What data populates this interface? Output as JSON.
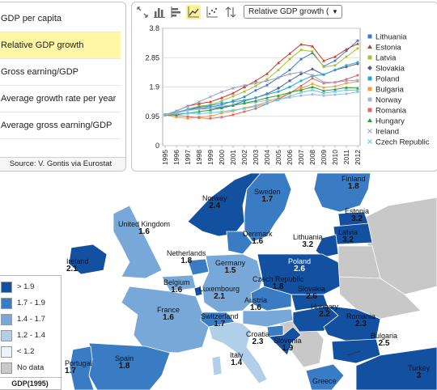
{
  "indicators": {
    "items": [
      {
        "label": "GDP per capita"
      },
      {
        "label": "Relative GDP growth"
      },
      {
        "label": "Gross earning/GDP"
      },
      {
        "label": "Average growth rate per year"
      },
      {
        "label": "Average gross earning/GDP"
      }
    ],
    "selected_index": 1,
    "source": "Source: V. Gontis via Eurostat"
  },
  "toolbar": {
    "icons": [
      "scatter-zoom-icon",
      "bar-chart-icon",
      "horizontal-bar-icon",
      "line-chart-icon",
      "scatter-plot-icon",
      "sort-icon"
    ],
    "active_icon": "line-chart-icon",
    "measure_select": "Relative GDP growth (",
    "select_arrow": "▼"
  },
  "chart_data": {
    "type": "line",
    "x": [
      "1995",
      "1996",
      "1997",
      "1998",
      "1999",
      "2000",
      "2001",
      "2002",
      "2003",
      "2004",
      "2005",
      "2006",
      "2007",
      "2008",
      "2009",
      "2010",
      "2011",
      "2012"
    ],
    "ylim": [
      0,
      3.8
    ],
    "yticks": [
      "0",
      "0.95",
      "1.9",
      "2.85",
      "3.8"
    ],
    "grid": true,
    "legend_position": "right",
    "series": [
      {
        "name": "Lithuania",
        "color": "#3a78c8",
        "marker": "square",
        "values": [
          1.0,
          1.05,
          1.18,
          1.27,
          1.25,
          1.32,
          1.45,
          1.58,
          1.79,
          1.96,
          2.2,
          2.45,
          2.8,
          3.0,
          2.57,
          2.75,
          3.07,
          3.4
        ]
      },
      {
        "name": "Estonia",
        "color": "#c83a2a",
        "marker": "triangle",
        "values": [
          1.0,
          1.12,
          1.28,
          1.36,
          1.42,
          1.55,
          1.7,
          1.9,
          2.1,
          2.33,
          2.68,
          2.98,
          3.28,
          3.22,
          2.75,
          2.88,
          3.12,
          3.3
        ]
      },
      {
        "name": "Latvia",
        "color": "#a8c030",
        "marker": "square",
        "values": [
          1.0,
          1.05,
          1.18,
          1.28,
          1.32,
          1.45,
          1.6,
          1.75,
          1.93,
          2.15,
          2.45,
          2.8,
          3.1,
          3.05,
          2.55,
          2.6,
          2.88,
          3.15
        ]
      },
      {
        "name": "Slovakia",
        "color": "#505aa8",
        "marker": "diamond",
        "values": [
          1.0,
          1.08,
          1.16,
          1.22,
          1.2,
          1.24,
          1.32,
          1.45,
          1.55,
          1.68,
          1.86,
          2.1,
          2.32,
          2.48,
          2.3,
          2.45,
          2.55,
          2.65
        ]
      },
      {
        "name": "Poland",
        "color": "#28a8c8",
        "marker": "square",
        "values": [
          1.0,
          1.08,
          1.17,
          1.25,
          1.3,
          1.38,
          1.42,
          1.47,
          1.55,
          1.66,
          1.75,
          1.9,
          2.1,
          2.26,
          2.3,
          2.45,
          2.6,
          2.7
        ]
      },
      {
        "name": "Bulgaria",
        "color": "#f0a040",
        "marker": "square",
        "values": [
          1.0,
          0.92,
          0.88,
          0.93,
          0.96,
          1.05,
          1.12,
          1.22,
          1.3,
          1.42,
          1.55,
          1.7,
          1.85,
          2.0,
          1.88,
          1.92,
          2.02,
          2.08
        ]
      },
      {
        "name": "Norway",
        "color": "#a0b8e0",
        "marker": "square",
        "values": [
          1.0,
          1.06,
          1.14,
          1.17,
          1.2,
          1.28,
          1.32,
          1.37,
          1.4,
          1.47,
          1.5,
          1.56,
          1.62,
          1.66,
          1.62,
          1.65,
          1.68,
          1.74
        ]
      },
      {
        "name": "Romania",
        "color": "#e06868",
        "marker": "square",
        "values": [
          1.0,
          0.98,
          0.94,
          0.9,
          0.88,
          0.92,
          1.0,
          1.1,
          1.2,
          1.36,
          1.5,
          1.7,
          1.93,
          2.18,
          2.02,
          2.05,
          2.15,
          2.28
        ]
      },
      {
        "name": "Hungary",
        "color": "#28a030",
        "marker": "triangle",
        "values": [
          1.0,
          1.0,
          1.05,
          1.1,
          1.15,
          1.22,
          1.3,
          1.38,
          1.45,
          1.55,
          1.62,
          1.72,
          1.8,
          1.9,
          1.78,
          1.82,
          1.88,
          1.86
        ]
      },
      {
        "name": "Ireland",
        "color": "#a0a0c0",
        "marker": "cross",
        "values": [
          1.0,
          1.12,
          1.28,
          1.42,
          1.58,
          1.74,
          1.86,
          1.95,
          2.02,
          2.1,
          2.2,
          2.32,
          2.38,
          2.28,
          2.05,
          2.05,
          2.1,
          2.12
        ]
      },
      {
        "name": "Czech Republic",
        "color": "#60c8e8",
        "marker": "cross",
        "values": [
          1.0,
          1.04,
          1.05,
          1.04,
          1.06,
          1.1,
          1.15,
          1.2,
          1.27,
          1.37,
          1.48,
          1.6,
          1.72,
          1.8,
          1.7,
          1.75,
          1.8,
          1.79
        ]
      }
    ]
  },
  "map": {
    "colors": {
      "c1": "#1450a0",
      "c2": "#3a7cc4",
      "c3": "#78a8d8",
      "c4": "#b2cfea",
      "c5": "#e6eef8",
      "nodata": "#c8c8c8"
    },
    "countries": [
      {
        "name": "Norway",
        "value": "2.4"
      },
      {
        "name": "Sweden",
        "value": "1.7"
      },
      {
        "name": "Finland",
        "value": "1.8"
      },
      {
        "name": "Estonia",
        "value": "3.2"
      },
      {
        "name": "Latvia",
        "value": "3.2"
      },
      {
        "name": "Lithuania",
        "value": "3.2"
      },
      {
        "name": "United Kingdom",
        "value": "1.6"
      },
      {
        "name": "Denmark",
        "value": "1.6"
      },
      {
        "name": "Ireland",
        "value": "2.1"
      },
      {
        "name": "Netherlands",
        "value": "1.8"
      },
      {
        "name": "Germany",
        "value": "1.5"
      },
      {
        "name": "Poland",
        "value": "2.6"
      },
      {
        "name": "Belgium",
        "value": "1.6"
      },
      {
        "name": "Luxembourg",
        "value": "2.1"
      },
      {
        "name": "Czech Republic",
        "value": "1.8"
      },
      {
        "name": "Slovakia",
        "value": "2.6"
      },
      {
        "name": "France",
        "value": "1.6"
      },
      {
        "name": "Austria",
        "value": "1.6"
      },
      {
        "name": "Hungary",
        "value": "2.2"
      },
      {
        "name": "Switzerland",
        "value": "1.7"
      },
      {
        "name": "Slovenia",
        "value": "1.9"
      },
      {
        "name": "Romania",
        "value": "2.3"
      },
      {
        "name": "Croatia",
        "value": "2.3"
      },
      {
        "name": "Bulgaria",
        "value": "2.5"
      },
      {
        "name": "Portugal",
        "value": "1.7"
      },
      {
        "name": "Spain",
        "value": "1.8"
      },
      {
        "name": "Italy",
        "value": "1.4"
      },
      {
        "name": "Turkey",
        "value": "3"
      },
      {
        "name": "Greece",
        "value": ""
      }
    ],
    "legend": {
      "items": [
        {
          "label": "> 1.9",
          "color": "#1450a0"
        },
        {
          "label": "1.7 - 1.9",
          "color": "#3a7cc4"
        },
        {
          "label": "1.4 - 1.7",
          "color": "#78a8d8"
        },
        {
          "label": "1.2 - 1.4",
          "color": "#b2cfea"
        },
        {
          "label": "< 1.2",
          "color": "#eef3fa"
        },
        {
          "label": "No data",
          "color": "#c8c8c8"
        }
      ],
      "title": "GDP(1995)"
    }
  }
}
